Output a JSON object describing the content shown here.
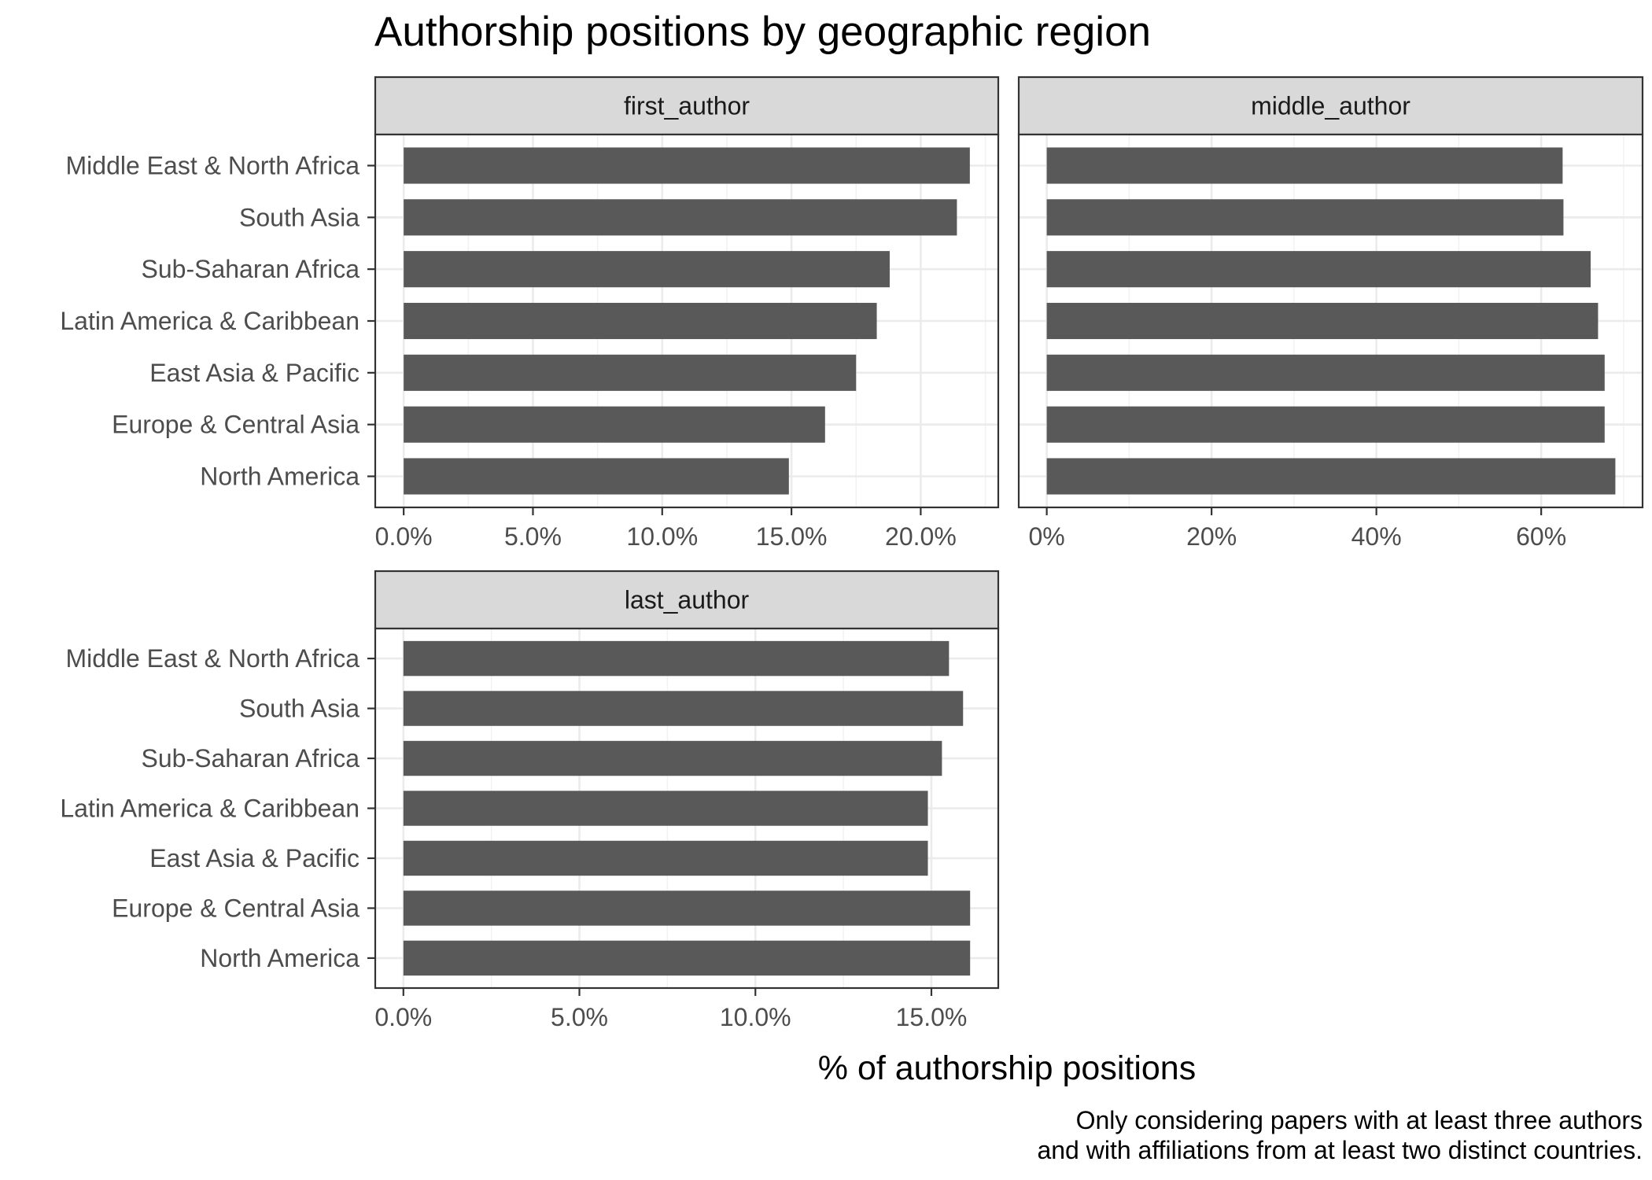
{
  "chart_data": {
    "type": "bar",
    "orientation": "horizontal",
    "title": "Authorship positions by geographic region",
    "xlabel": "% of authorship positions",
    "ylabel": "",
    "caption": [
      "Only considering papers with at least three authors",
      "and with affiliations from at least two distinct countries."
    ],
    "grid": true,
    "bar_color": "#595959",
    "categories": [
      "Middle East & North Africa",
      "South Asia",
      "Sub-Saharan Africa",
      "Latin America & Caribbean",
      "East Asia & Pacific",
      "Europe & Central Asia",
      "North America"
    ],
    "panels": [
      {
        "name": "first_author",
        "xlim": [
          -1.1,
          23.0
        ],
        "ticks": [
          0,
          5,
          10,
          15,
          20
        ],
        "tick_labels": [
          "0.0%",
          "5.0%",
          "10.0%",
          "15.0%",
          "20.0%"
        ],
        "values": [
          21.9,
          21.4,
          18.8,
          18.3,
          17.5,
          16.3,
          14.9
        ]
      },
      {
        "name": "middle_author",
        "xlim": [
          -3.4,
          72.3
        ],
        "ticks": [
          0,
          20,
          40,
          60
        ],
        "tick_labels": [
          "0%",
          "20%",
          "40%",
          "60%"
        ],
        "values": [
          62.6,
          62.7,
          66.0,
          66.9,
          67.7,
          67.7,
          69.0
        ]
      },
      {
        "name": "last_author",
        "xlim": [
          -0.8,
          16.9
        ],
        "ticks": [
          0,
          5,
          10,
          15
        ],
        "tick_labels": [
          "0.0%",
          "5.0%",
          "10.0%",
          "15.0%"
        ],
        "values": [
          15.5,
          15.9,
          15.3,
          14.9,
          14.9,
          16.1,
          16.1
        ]
      }
    ]
  }
}
